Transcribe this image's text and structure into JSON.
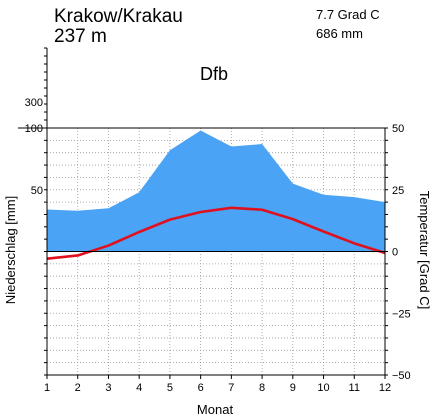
{
  "header": {
    "station": "Krakow/Krakau",
    "elevation": "237 m",
    "mean_temp": "7.7 Grad C",
    "annual_precip": "686 mm",
    "climate_class": "Dfb"
  },
  "colors": {
    "precip_fill": "#4aa3f5",
    "temp_line": "#e0101e",
    "grid": "#9a9a9a",
    "axis": "#000000"
  },
  "chart_data": {
    "type": "area",
    "title": "Krakow/Krakau",
    "xlabel": "Monat",
    "ylabel_left": "Niederschlag [mm]",
    "ylabel_right": "Temperatur [Grad C]",
    "x": [
      1,
      2,
      3,
      4,
      5,
      6,
      7,
      8,
      9,
      10,
      11,
      12
    ],
    "x_ticks": [
      "1",
      "2",
      "3",
      "4",
      "5",
      "6",
      "7",
      "8",
      "9",
      "10",
      "11",
      "12"
    ],
    "left_ticks": [
      "300",
      "100",
      "50"
    ],
    "right_ticks": [
      "50",
      "25",
      "0",
      "−25",
      "−50"
    ],
    "precip_ylim": [
      0,
      100
    ],
    "temp_ylim": [
      -50,
      50
    ],
    "grid": true,
    "series": [
      {
        "type": "area",
        "axis": "left",
        "values": [
          34,
          33,
          35,
          48,
          82,
          98,
          85,
          87,
          55,
          46,
          44,
          40
        ]
      },
      {
        "type": "line",
        "axis": "right",
        "values": [
          -2.9,
          -1.6,
          2.4,
          7.9,
          12.9,
          16.0,
          17.7,
          16.9,
          13.1,
          8.1,
          3.3,
          -0.6
        ]
      }
    ]
  }
}
